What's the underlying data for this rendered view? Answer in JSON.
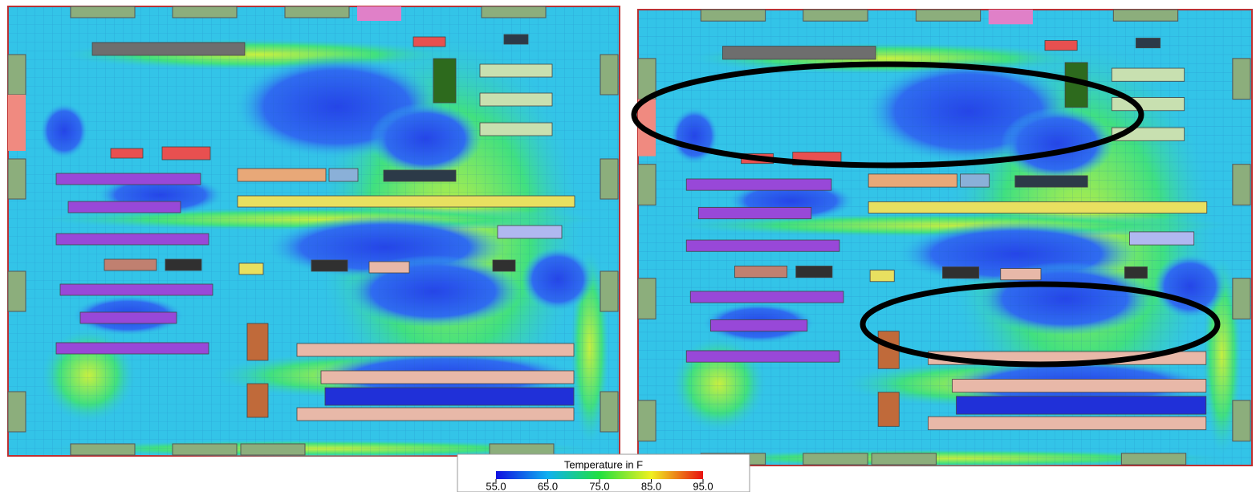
{
  "legend": {
    "title": "Temperature in F",
    "ticks": [
      {
        "value": 55,
        "label": "55.0"
      },
      {
        "value": 65,
        "label": "65.0"
      },
      {
        "value": 75,
        "label": "75.0"
      },
      {
        "value": 85,
        "label": "85.0"
      },
      {
        "value": 95,
        "label": "95.0"
      }
    ]
  }
}
